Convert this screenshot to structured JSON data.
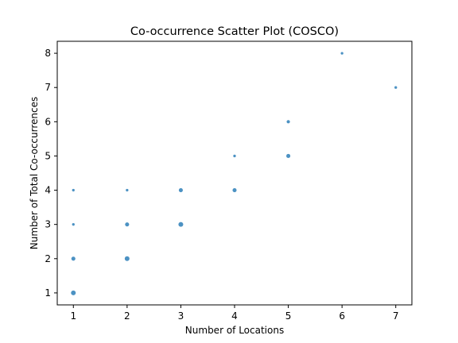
{
  "chart_data": {
    "type": "scatter",
    "title": "Co-occurrence Scatter Plot (COSCO)",
    "xlabel": "Number of Locations",
    "ylabel": "Number of Total Co-occurrences",
    "xlim": [
      0.7,
      7.3
    ],
    "ylim": [
      0.65,
      8.35
    ],
    "xticks": [
      1,
      2,
      3,
      4,
      5,
      6,
      7
    ],
    "yticks": [
      1,
      2,
      3,
      4,
      5,
      6,
      7,
      8
    ],
    "grid": false,
    "legend": "none",
    "color": "#1f77b4",
    "points": [
      {
        "x": 1,
        "y": 1,
        "weight": 4
      },
      {
        "x": 1,
        "y": 2,
        "weight": 3
      },
      {
        "x": 1,
        "y": 3,
        "weight": 1
      },
      {
        "x": 1,
        "y": 4,
        "weight": 1
      },
      {
        "x": 2,
        "y": 2,
        "weight": 4
      },
      {
        "x": 2,
        "y": 3,
        "weight": 3
      },
      {
        "x": 2,
        "y": 4,
        "weight": 1
      },
      {
        "x": 3,
        "y": 3,
        "weight": 4
      },
      {
        "x": 3,
        "y": 4,
        "weight": 3
      },
      {
        "x": 4,
        "y": 4,
        "weight": 3
      },
      {
        "x": 4,
        "y": 5,
        "weight": 1
      },
      {
        "x": 5,
        "y": 5,
        "weight": 3
      },
      {
        "x": 5,
        "y": 6,
        "weight": 2
      },
      {
        "x": 6,
        "y": 8,
        "weight": 1
      },
      {
        "x": 7,
        "y": 7,
        "weight": 1
      }
    ]
  }
}
